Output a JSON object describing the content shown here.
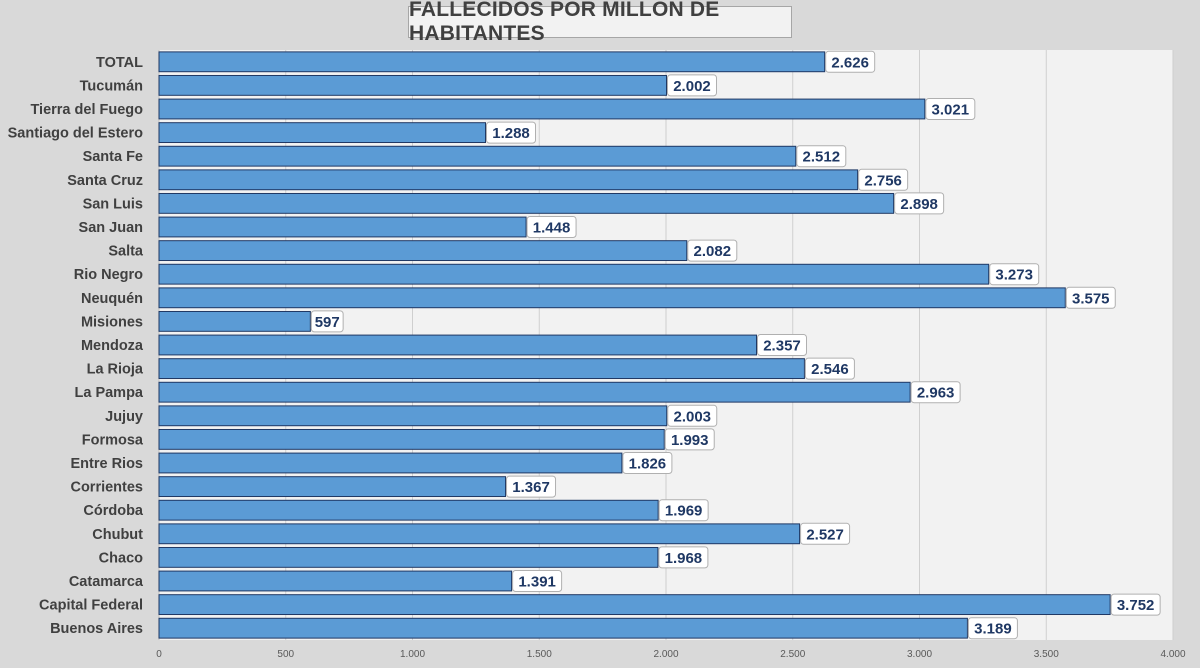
{
  "chart_data": {
    "type": "bar",
    "orientation": "horizontal",
    "title": "FALLECIDOS POR MILLÓN DE HABITANTES",
    "xlabel": "",
    "ylabel": "",
    "xlim": [
      0,
      4000
    ],
    "x_ticks": [
      "0",
      "500",
      "1.000",
      "1.500",
      "2.000",
      "2.500",
      "3.000",
      "3.500",
      "4.000"
    ],
    "grid": true,
    "legend": "none",
    "bar_color": "#5b9bd5",
    "bar_edge_color": "#1f3864",
    "label_color": "#1f3864",
    "categories": [
      "TOTAL",
      "Tucumán",
      "Tierra del Fuego",
      "Santiago del Estero",
      "Santa Fe",
      "Santa Cruz",
      "San Luis",
      "San Juan",
      "Salta",
      "Rio Negro",
      "Neuquén",
      "Misiones",
      "Mendoza",
      "La Rioja",
      "La Pampa",
      "Jujuy",
      "Formosa",
      "Entre Rios",
      "Corrientes",
      "Córdoba",
      "Chubut",
      "Chaco",
      "Catamarca",
      "Capital Federal",
      "Buenos Aires"
    ],
    "values": [
      2626,
      2002,
      3021,
      1288,
      2512,
      2756,
      2898,
      1448,
      2082,
      3273,
      3575,
      597,
      2357,
      2546,
      2963,
      2003,
      1993,
      1826,
      1367,
      1969,
      2527,
      1968,
      1391,
      3752,
      3189
    ],
    "value_labels": [
      "2.626",
      "2.002",
      "3.021",
      "1.288",
      "2.512",
      "2.756",
      "2.898",
      "1.448",
      "2.082",
      "3.273",
      "3.575",
      "597",
      "2.357",
      "2.546",
      "2.963",
      "2.003",
      "1.993",
      "1.826",
      "1.367",
      "1.969",
      "2.527",
      "1.968",
      "1.391",
      "3.752",
      "3.189"
    ]
  }
}
